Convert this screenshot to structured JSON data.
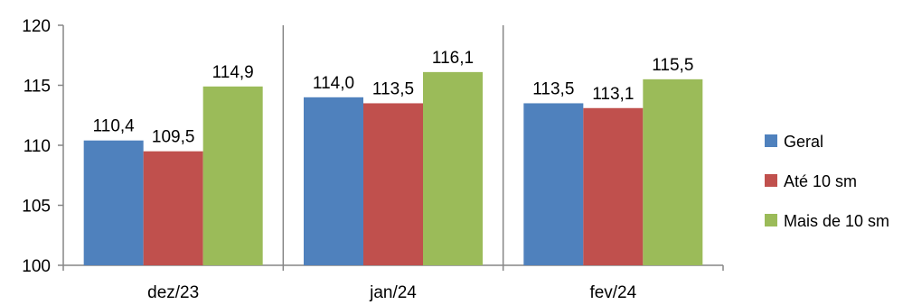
{
  "chart_data": {
    "type": "bar",
    "title": "",
    "xlabel": "",
    "ylabel": "",
    "ylim": [
      100,
      120
    ],
    "yticks": [
      100,
      105,
      110,
      115,
      120
    ],
    "categories": [
      "dez/23",
      "jan/24",
      "fev/24"
    ],
    "series": [
      {
        "name": "Geral",
        "color": "#4F81BD",
        "values": [
          110.4,
          114.0,
          113.5
        ],
        "labels": [
          "110,4",
          "114,0",
          "113,5"
        ]
      },
      {
        "name": "Até 10 sm",
        "color": "#C0504D",
        "values": [
          109.5,
          113.5,
          113.1
        ],
        "labels": [
          "109,5",
          "113,5",
          "113,1"
        ]
      },
      {
        "name": "Mais de 10 sm",
        "color": "#9BBB59",
        "values": [
          114.9,
          116.1,
          115.5
        ],
        "labels": [
          "114,9",
          "116,1",
          "115,5"
        ]
      }
    ],
    "legend_position": "right",
    "grid": false,
    "category_separators": true
  }
}
